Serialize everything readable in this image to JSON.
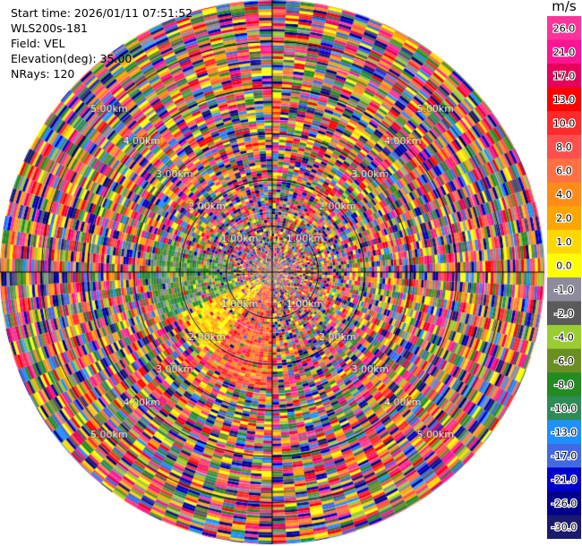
{
  "info": {
    "start_time": "Start time: 2026/01/11 07:51:52",
    "instrument": "WLS200s-181",
    "field": "Field: VEL",
    "elevation": "Elevation(deg): 35.00",
    "nrays": "NRays: 120"
  },
  "chart_data": {
    "type": "heatmap",
    "projection": "polar",
    "field": "VEL",
    "n_rays": 120,
    "range_rings": [
      "1.00km",
      "2.00km",
      "3.00km",
      "4.00km",
      "5.00km"
    ],
    "ring_label_count": 4,
    "max_range_km": 5.9,
    "colorbar": {
      "unit": "m/s",
      "ticks": [
        "26.0",
        "21.0",
        "17.0",
        "13.0",
        "10.0",
        "8.0",
        "6.0",
        "4.0",
        "2.0",
        "1.0",
        "0.0",
        "-1.0",
        "-2.0",
        "-4.0",
        "-6.0",
        "-8.0",
        "-10.0",
        "-13.0",
        "-17.0",
        "-21.0",
        "-26.0",
        "-30.0"
      ],
      "colors": [
        "#ff3399",
        "#ff1493",
        "#e6005c",
        "#ff0000",
        "#ff2a2a",
        "#ff4f4f",
        "#ff7043",
        "#ff8c1a",
        "#ffa500",
        "#ffd700",
        "#ffff00",
        "#8c8c9c",
        "#5a5a5a",
        "#9acd32",
        "#6b8e23",
        "#228b22",
        "#2e8b57",
        "#1e90ff",
        "#4169e1",
        "#0000cd",
        "#00008b",
        "#1a1a6e"
      ]
    },
    "notable_regions": [
      {
        "description": "orange/red positive velocities",
        "azimuth_deg": [
          180,
          215
        ],
        "range_km": [
          0.3,
          2.5
        ]
      },
      {
        "description": "yellow 2-4 m/s",
        "azimuth_deg": [
          215,
          245
        ],
        "range_km": [
          0.3,
          2.2
        ]
      },
      {
        "description": "green -4 to -8 m/s",
        "azimuth_deg": [
          245,
          285
        ],
        "range_km": [
          0.8,
          2.6
        ]
      }
    ]
  }
}
